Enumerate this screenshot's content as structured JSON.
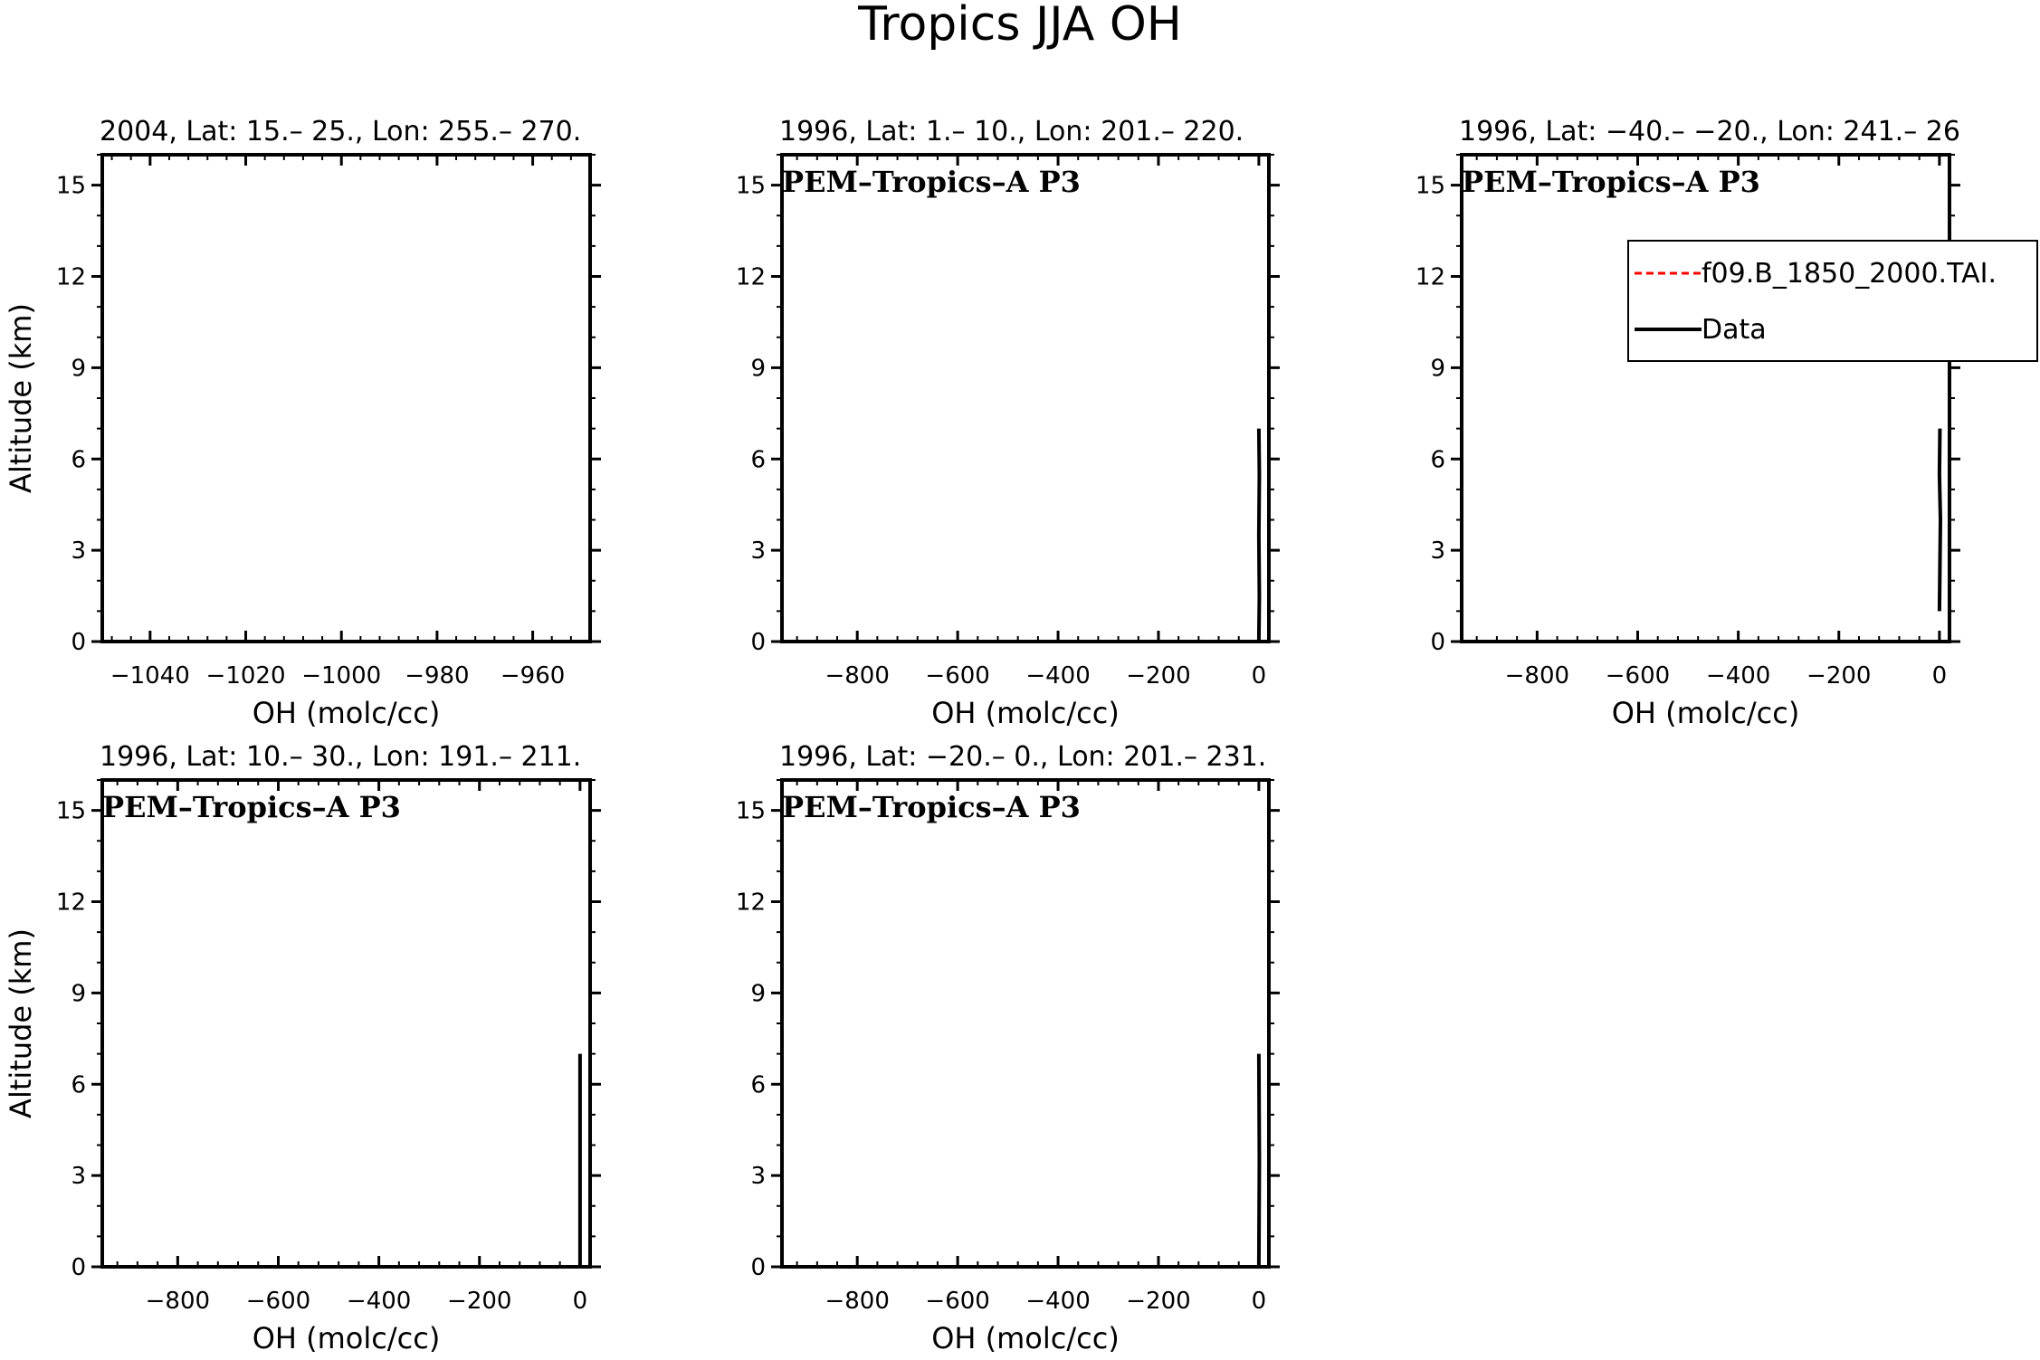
{
  "figure": {
    "title": "Tropics JJA OH"
  },
  "chart_data": [
    {
      "type": "line",
      "title": "2004, Lat: 15.– 25., Lon: 255.– 270.",
      "xlabel": "OH (molc/cc)",
      "ylabel": "Altitude (km)",
      "xlim": [
        -1050,
        -948
      ],
      "ylim": [
        0,
        16
      ],
      "xticks": [
        -1040,
        -1020,
        -1000,
        -980,
        -960
      ],
      "xtick_labels": [
        "−1040",
        "−1020",
        "−1000",
        "−980",
        "−960"
      ],
      "yticks": [
        0,
        3,
        6,
        9,
        12,
        15
      ],
      "campaign_label": "",
      "series": []
    },
    {
      "type": "line",
      "title": "1996, Lat: 1.– 10., Lon: 201.– 220.",
      "xlabel": "OH (molc/cc)",
      "ylabel": "",
      "xlim": [
        -950,
        20
      ],
      "ylim": [
        0,
        16
      ],
      "xticks": [
        -800,
        -600,
        -400,
        -200,
        0
      ],
      "xtick_labels": [
        "−800",
        "−600",
        "−400",
        "−200",
        "0"
      ],
      "yticks": [
        0,
        3,
        6,
        9,
        12,
        15
      ],
      "campaign_label": "PEM–Tropics–A P3",
      "series": [
        {
          "color": "#000000",
          "dash": false,
          "x": [
            0,
            1,
            0,
            1,
            0
          ],
          "y": [
            0,
            1.5,
            3.5,
            5.5,
            7
          ]
        }
      ]
    },
    {
      "type": "line",
      "title": "1996, Lat: −40.– −20., Lon: 241.– 26",
      "xlabel": "OH (molc/cc)",
      "ylabel": "",
      "xlim": [
        -950,
        20
      ],
      "ylim": [
        0,
        16
      ],
      "xticks": [
        -800,
        -600,
        -400,
        -200,
        0
      ],
      "xtick_labels": [
        "−800",
        "−600",
        "−400",
        "−200",
        "0"
      ],
      "yticks": [
        0,
        3,
        6,
        9,
        12,
        15
      ],
      "campaign_label": "PEM–Tropics–A P3",
      "legend": {
        "placement": "upper-right",
        "entries": [
          {
            "name": "f09.B_1850_2000.TAI.",
            "color": "#ff0000",
            "dash": true
          },
          {
            "name": "Data",
            "color": "#000000",
            "dash": false
          }
        ]
      },
      "series": [
        {
          "color": "#000000",
          "dash": false,
          "x": [
            0,
            1,
            2,
            0,
            1
          ],
          "y": [
            1,
            2.5,
            4,
            5.5,
            7
          ]
        }
      ]
    },
    {
      "type": "line",
      "title": "1996, Lat: 10.– 30., Lon: 191.– 211.",
      "xlabel": "OH (molc/cc)",
      "ylabel": "Altitude (km)",
      "xlim": [
        -950,
        20
      ],
      "ylim": [
        0,
        16
      ],
      "xticks": [
        -800,
        -600,
        -400,
        -200,
        0
      ],
      "xtick_labels": [
        "−800",
        "−600",
        "−400",
        "−200",
        "0"
      ],
      "yticks": [
        0,
        3,
        6,
        9,
        12,
        15
      ],
      "campaign_label": "PEM–Tropics–A P3",
      "series": [
        {
          "color": "#000000",
          "dash": false,
          "x": [
            0,
            0,
            0
          ],
          "y": [
            0,
            3.5,
            7
          ]
        }
      ]
    },
    {
      "type": "line",
      "title": "1996, Lat: −20.– 0., Lon: 201.– 231.",
      "xlabel": "OH (molc/cc)",
      "ylabel": "",
      "xlim": [
        -950,
        20
      ],
      "ylim": [
        0,
        16
      ],
      "xticks": [
        -800,
        -600,
        -400,
        -200,
        0
      ],
      "xtick_labels": [
        "−800",
        "−600",
        "−400",
        "−200",
        "0"
      ],
      "yticks": [
        0,
        3,
        6,
        9,
        12,
        15
      ],
      "campaign_label": "PEM–Tropics–A P3",
      "series": [
        {
          "color": "#000000",
          "dash": false,
          "x": [
            0,
            1,
            0
          ],
          "y": [
            0,
            3.5,
            7
          ]
        }
      ]
    }
  ]
}
